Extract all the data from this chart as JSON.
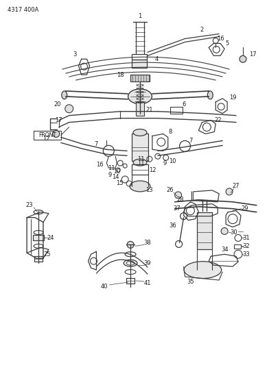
{
  "title": "4317 400A",
  "background_color": "#ffffff",
  "line_color": "#3a3a3a",
  "text_color": "#1a1a1a",
  "fig_width": 4.08,
  "fig_height": 5.33,
  "dpi": 100
}
